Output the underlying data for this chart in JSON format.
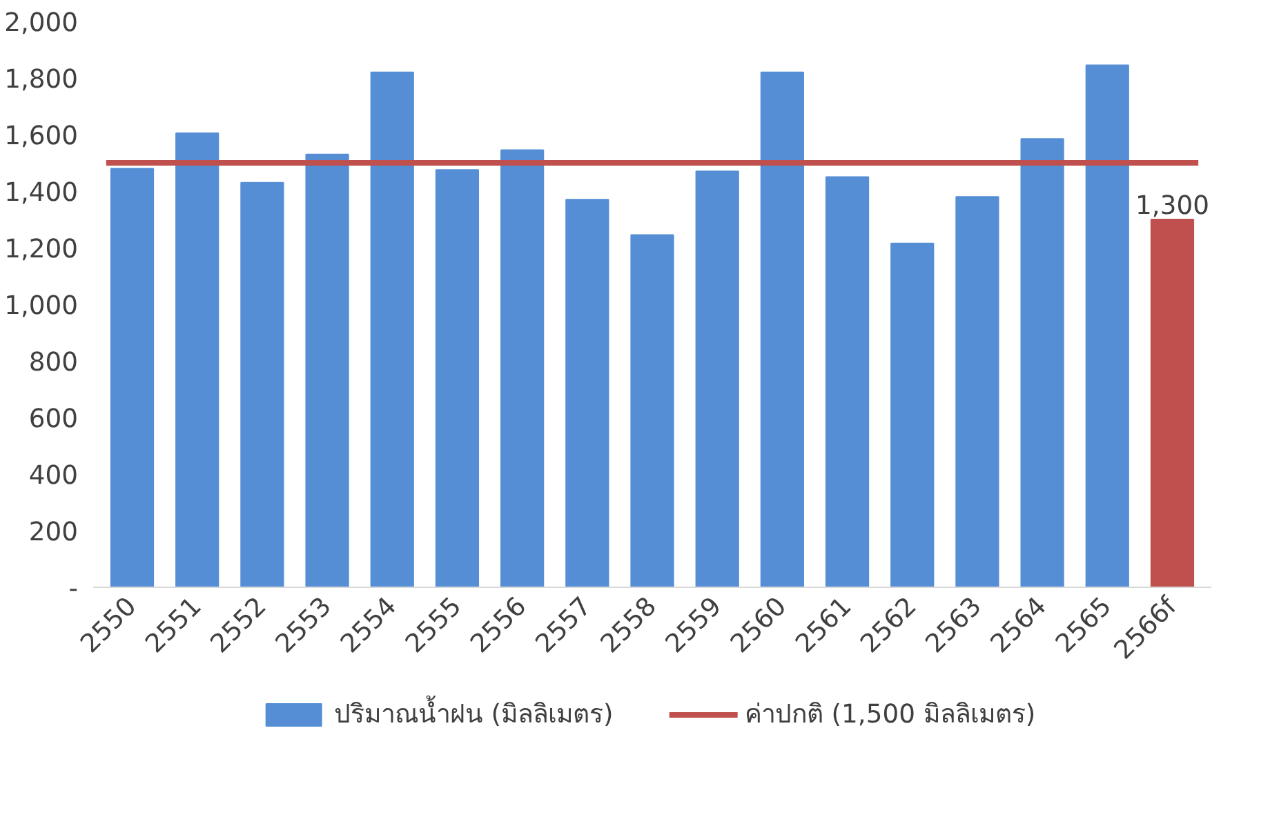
{
  "chart_data": {
    "type": "bar",
    "categories": [
      "2550",
      "2551",
      "2552",
      "2553",
      "2554",
      "2555",
      "2556",
      "2557",
      "2558",
      "2559",
      "2560",
      "2561",
      "2562",
      "2563",
      "2564",
      "2565",
      "2566f"
    ],
    "series": [
      {
        "name": "ปริมาณน้ำฝน (มิลลิเมตร)",
        "color": "#558ed5",
        "colors": [
          "#558ed5",
          "#558ed5",
          "#558ed5",
          "#558ed5",
          "#558ed5",
          "#558ed5",
          "#558ed5",
          "#558ed5",
          "#558ed5",
          "#558ed5",
          "#558ed5",
          "#558ed5",
          "#558ed5",
          "#558ed5",
          "#558ed5",
          "#558ed5",
          "#c0504d"
        ],
        "values": [
          1480,
          1605,
          1430,
          1530,
          1820,
          1475,
          1545,
          1370,
          1245,
          1470,
          1820,
          1450,
          1215,
          1380,
          1585,
          1845,
          1300
        ],
        "value_labels": [
          null,
          null,
          null,
          null,
          null,
          null,
          null,
          null,
          null,
          null,
          null,
          null,
          null,
          null,
          null,
          null,
          "1,300"
        ]
      }
    ],
    "ref_lines": [
      {
        "axis": "y",
        "value": 1500,
        "label": "ค่าปกติ (1,500 มิลลิเมตร)",
        "color": "#c0504d"
      }
    ],
    "ylim": [
      0,
      2000
    ],
    "yticks": [
      {
        "value": 0,
        "label": "-"
      },
      {
        "value": 200,
        "label": "200"
      },
      {
        "value": 400,
        "label": "400"
      },
      {
        "value": 600,
        "label": "600"
      },
      {
        "value": 800,
        "label": "800"
      },
      {
        "value": 1000,
        "label": "1,000"
      },
      {
        "value": 1200,
        "label": "1,200"
      },
      {
        "value": 1400,
        "label": "1,400"
      },
      {
        "value": 1600,
        "label": "1,600"
      },
      {
        "value": 1800,
        "label": "1,800"
      },
      {
        "value": 2000,
        "label": "2,000"
      }
    ],
    "grid": false,
    "legend": "bottom"
  }
}
